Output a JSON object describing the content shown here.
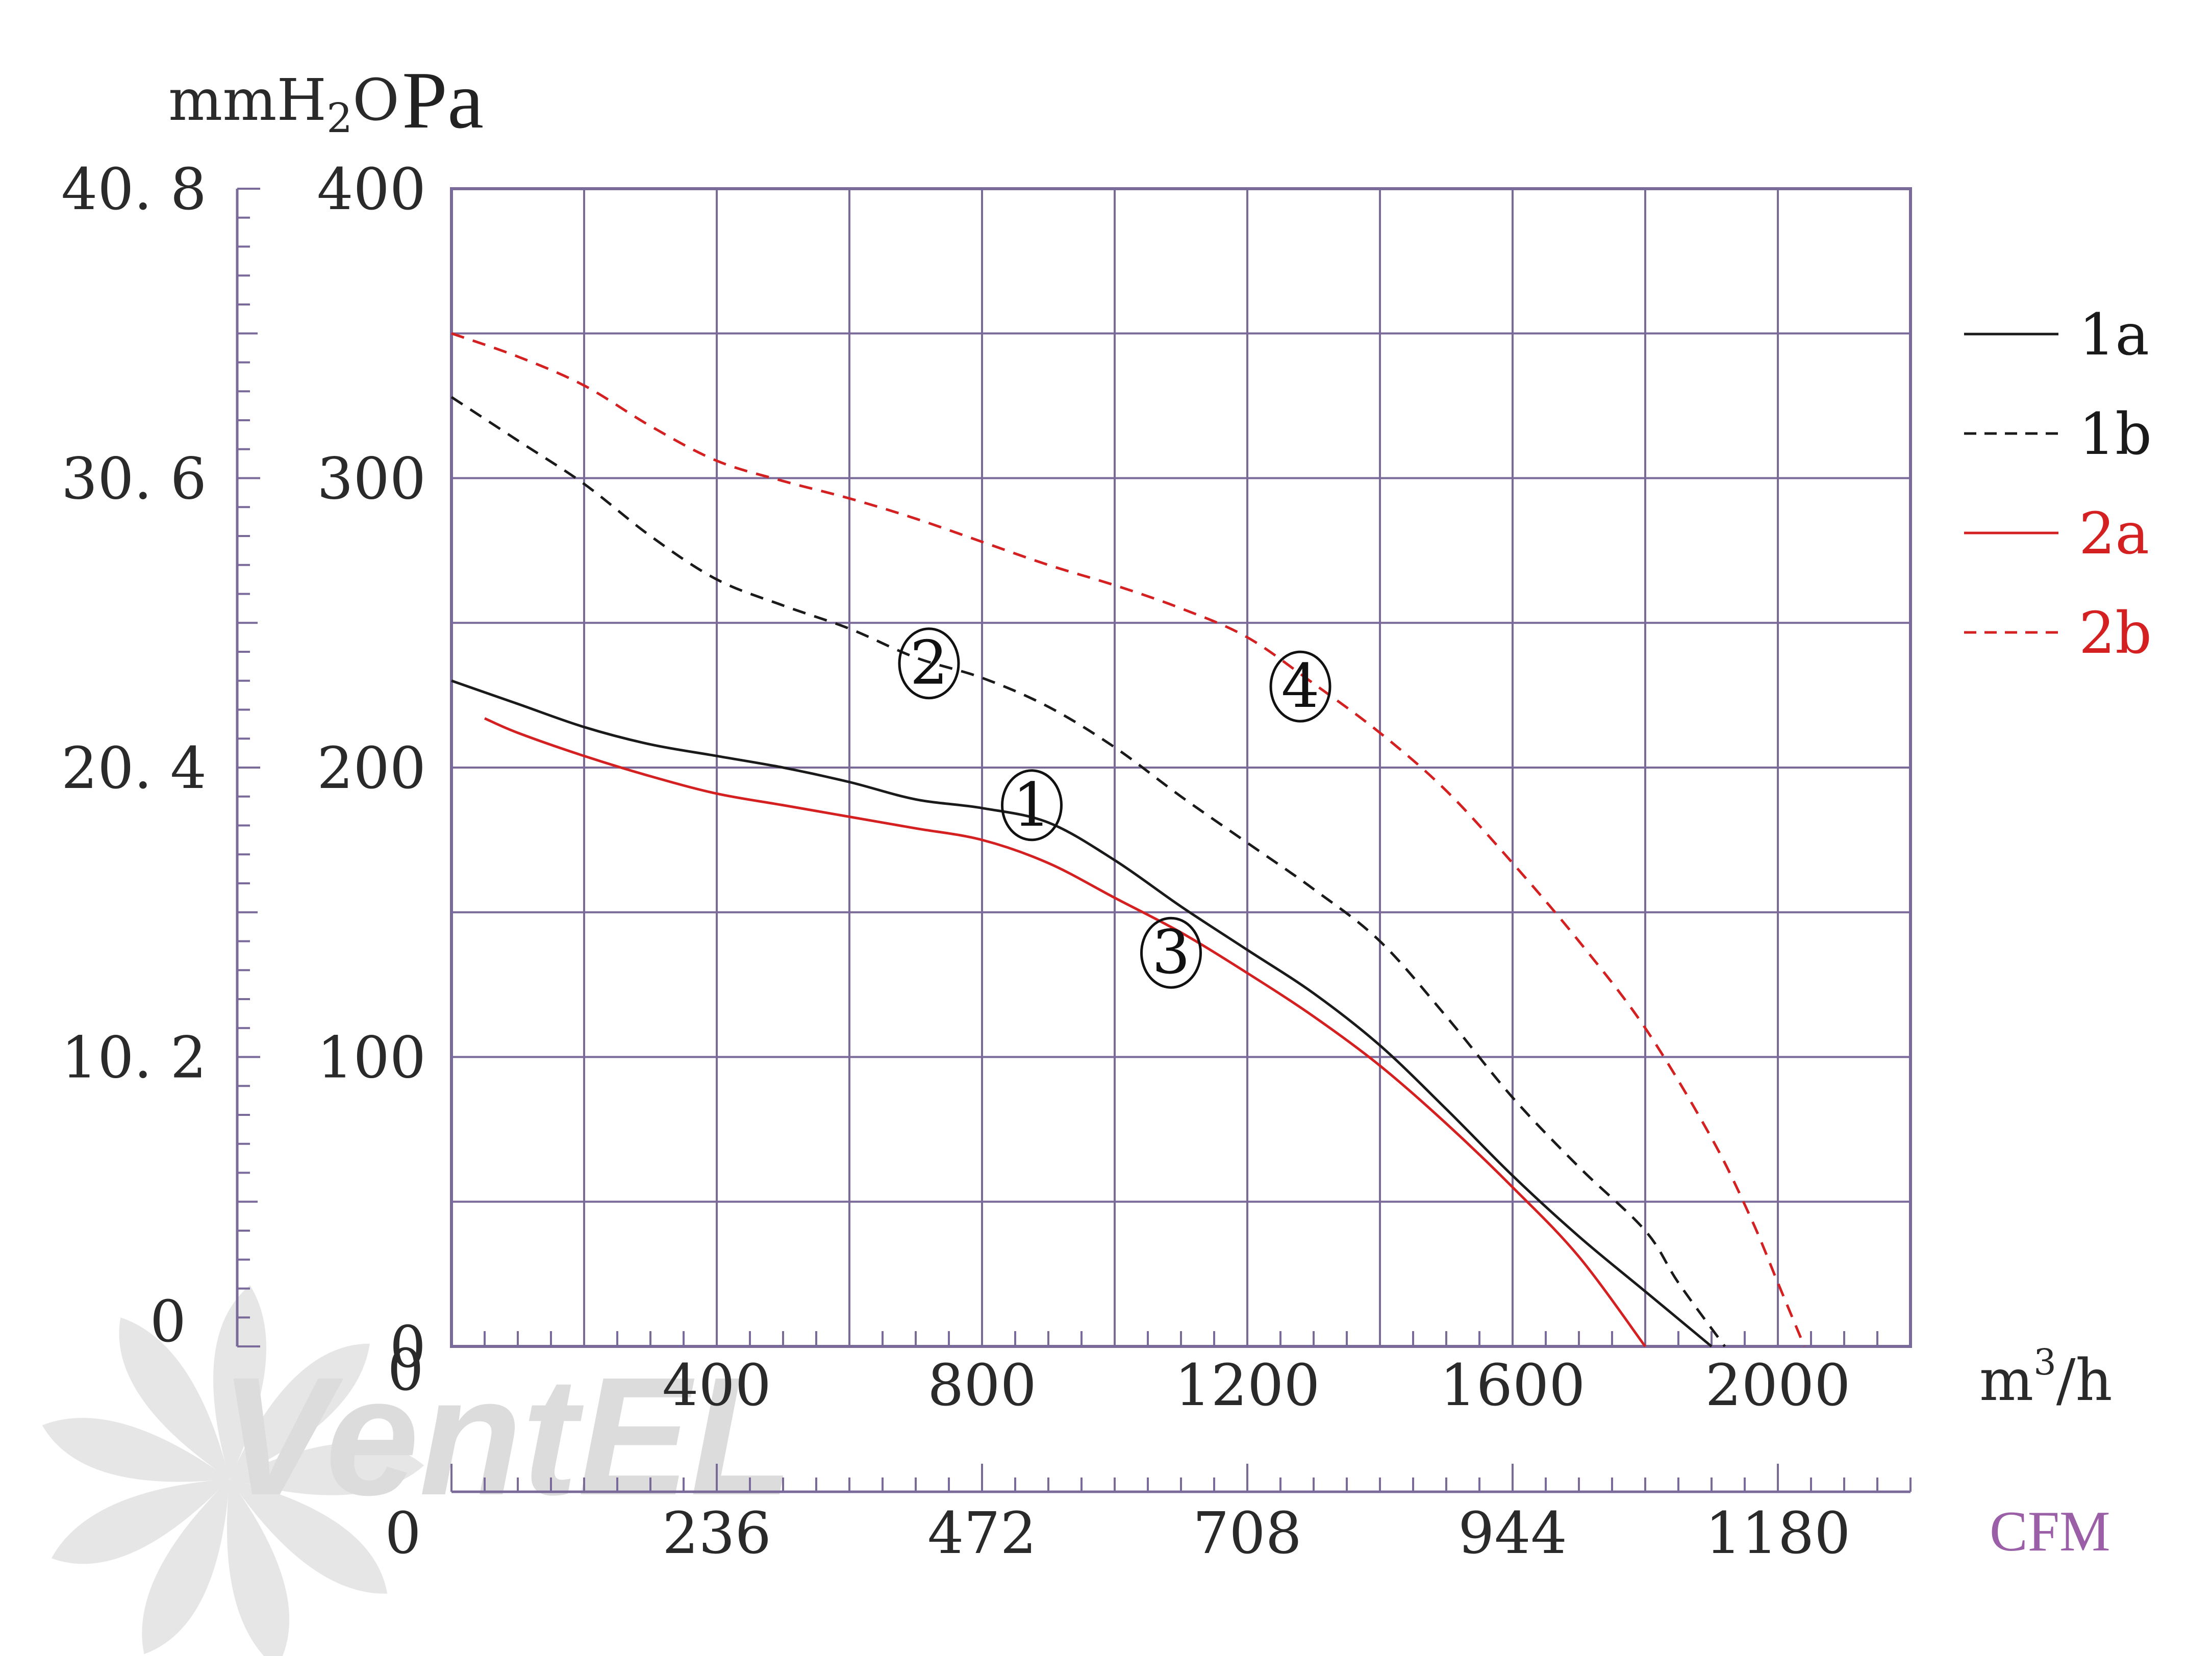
{
  "chart_data": {
    "type": "line",
    "units": {
      "left_outer": "mmH",
      "left_outer_sub": "2",
      "left_outer_tail": "O",
      "left_inner": "Pa",
      "x_bottom": "m",
      "x_bottom_sup": "3",
      "x_bottom_tail": "/h",
      "x_secondary": "CFM"
    },
    "y_pa": {
      "range": [
        0,
        400
      ],
      "ticks": [
        "0",
        "100",
        "200",
        "300",
        "400"
      ]
    },
    "y_mmh2o": {
      "ticks": [
        "0",
        "10. 2",
        "20. 4",
        "30. 6",
        "40. 8"
      ]
    },
    "x_m3h": {
      "range": [
        0,
        2200
      ],
      "ticks": [
        "0",
        "400",
        "800",
        "1200",
        "1600",
        "2000"
      ]
    },
    "x_cfm": {
      "ticks": [
        "0",
        "236",
        "472",
        "708",
        "944",
        "1180"
      ]
    },
    "grid": true,
    "legend_position": "right",
    "series": [
      {
        "name": "1a",
        "color": "#1a1a1a",
        "dash": "solid",
        "x": [
          0,
          100,
          200,
          300,
          400,
          500,
          600,
          700,
          800,
          900,
          1000,
          1100,
          1200,
          1300,
          1400,
          1500,
          1600,
          1700,
          1800,
          1900
        ],
        "y": [
          230,
          222,
          214,
          208,
          204,
          200,
          195,
          189,
          186,
          181,
          168,
          152,
          137,
          122,
          104,
          82,
          59,
          38,
          19,
          0
        ]
      },
      {
        "name": "1b",
        "color": "#1a1a1a",
        "dash": "dashed",
        "x": [
          0,
          100,
          200,
          300,
          400,
          500,
          600,
          700,
          800,
          900,
          1000,
          1100,
          1200,
          1300,
          1400,
          1500,
          1600,
          1700,
          1800,
          1850,
          1920
        ],
        "y": [
          328,
          313,
          298,
          280,
          265,
          256,
          248,
          238,
          231,
          221,
          207,
          190,
          174,
          158,
          140,
          114,
          86,
          62,
          40,
          22,
          0
        ]
      },
      {
        "name": "2a",
        "color": "#d42020",
        "dash": "solid",
        "x": [
          50,
          100,
          200,
          300,
          400,
          500,
          600,
          700,
          800,
          900,
          1000,
          1100,
          1200,
          1300,
          1400,
          1500,
          1600,
          1700,
          1800
        ],
        "y": [
          217,
          212,
          204,
          197,
          191,
          187,
          183,
          179,
          175,
          167,
          155,
          143,
          129,
          114,
          97,
          77,
          55,
          31,
          0
        ]
      },
      {
        "name": "2b",
        "color": "#d42020",
        "dash": "dashed",
        "x": [
          0,
          100,
          200,
          300,
          400,
          500,
          600,
          700,
          800,
          900,
          1000,
          1100,
          1200,
          1300,
          1400,
          1500,
          1600,
          1700,
          1800,
          1900,
          1960,
          2000,
          2040
        ],
        "y": [
          350,
          342,
          332,
          318,
          306,
          299,
          293,
          286,
          278,
          270,
          263,
          255,
          245,
          229,
          212,
          192,
          167,
          140,
          110,
          72,
          44,
          22,
          0
        ]
      }
    ],
    "annotations": [
      {
        "label": "1",
        "x": 875,
        "y": 187
      },
      {
        "label": "2",
        "x": 720,
        "y": 236
      },
      {
        "label": "3",
        "x": 1085,
        "y": 136
      },
      {
        "label": "4",
        "x": 1280,
        "y": 228
      }
    ],
    "watermark_text": "VentEL"
  }
}
